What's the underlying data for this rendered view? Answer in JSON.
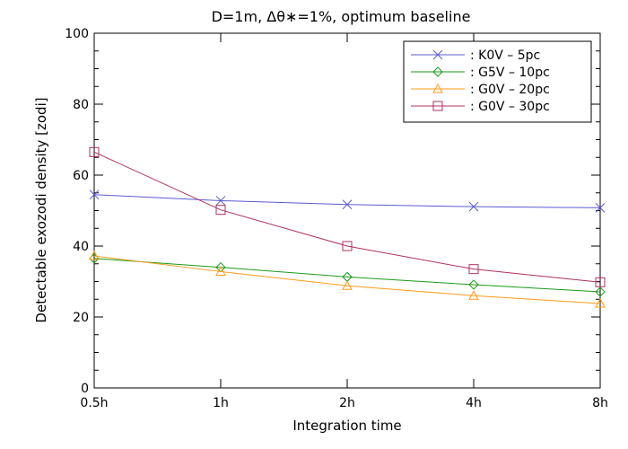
{
  "chart_data": {
    "type": "line",
    "title": "D=1m, Δθ∗=1%, optimum baseline",
    "xlabel": "Integration time",
    "ylabel": "Detectable exozodi density [zodi]",
    "categories": [
      "0.5h",
      "1h",
      "2h",
      "4h",
      "8h"
    ],
    "ylim": [
      0,
      100
    ],
    "yticks": [
      0,
      20,
      40,
      60,
      80,
      100
    ],
    "grid": false,
    "legend_position": "top-right",
    "series": [
      {
        "name": ": K0V – 5pc",
        "color": "#5b5bd0",
        "marker": "x",
        "values": [
          54.5,
          52.8,
          51.7,
          51.1,
          50.8
        ]
      },
      {
        "name": ": G5V – 10pc",
        "color": "#1a9a1a",
        "marker": "diamond",
        "values": [
          36.5,
          34.0,
          31.3,
          29.1,
          27.1
        ]
      },
      {
        "name": ": G0V – 20pc",
        "color": "#ff9a1a",
        "marker": "triangle",
        "values": [
          37.2,
          32.8,
          28.8,
          26.0,
          23.8
        ]
      },
      {
        "name": ": G0V – 30pc",
        "color": "#b03060",
        "marker": "square",
        "values": [
          66.5,
          50.2,
          40.0,
          33.5,
          29.8
        ]
      }
    ]
  }
}
